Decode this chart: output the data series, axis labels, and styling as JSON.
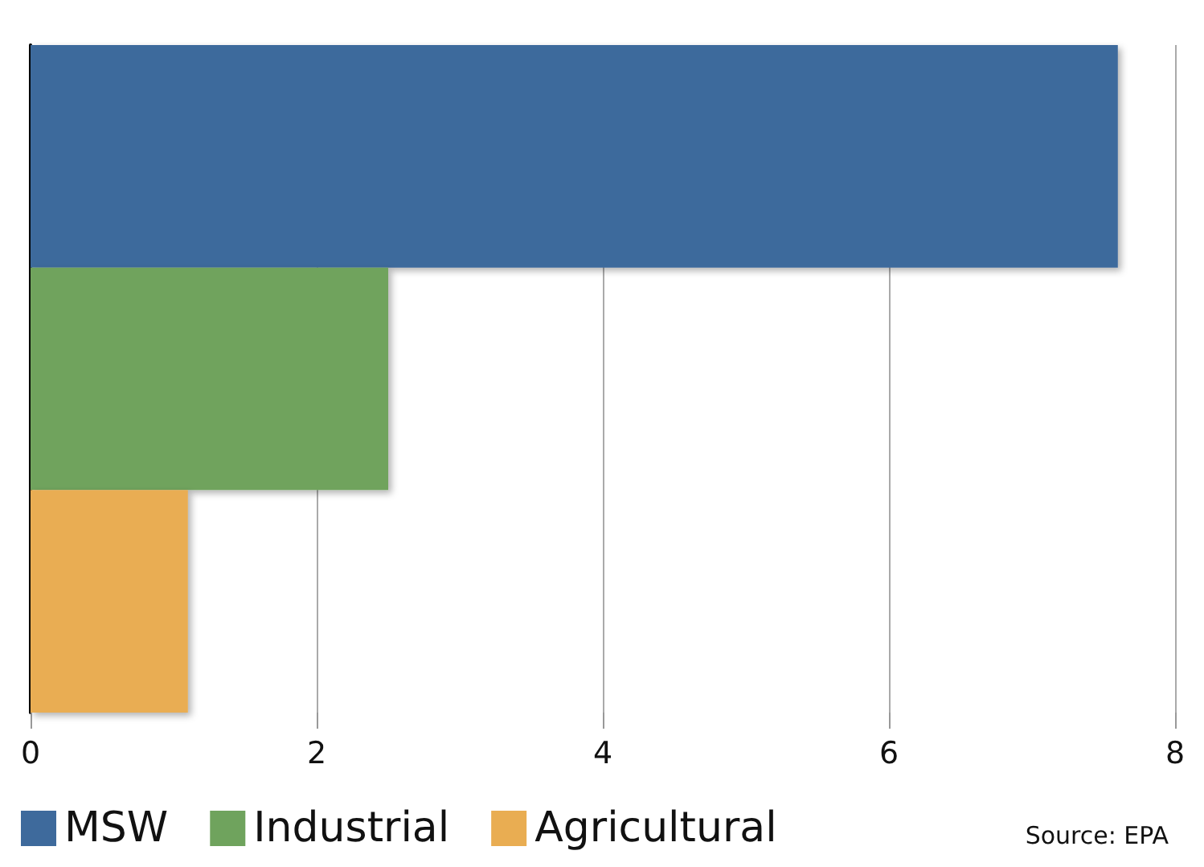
{
  "chart_data": {
    "type": "bar",
    "orientation": "horizontal",
    "stacked": true,
    "categories": [
      null,
      null,
      null
    ],
    "series": [
      {
        "name": "MSW",
        "color": "#3e6a9c",
        "values": [
          7.6,
          null,
          null
        ]
      },
      {
        "name": "Industrial",
        "color": "#6fa35d",
        "values": [
          null,
          2.5,
          null
        ]
      },
      {
        "name": "Agricultural",
        "color": "#e9ad52",
        "values": [
          null,
          null,
          1.1
        ]
      }
    ],
    "xlim": [
      0,
      8
    ],
    "xticks": [
      0,
      2,
      4,
      6,
      8
    ],
    "grid": "x",
    "legend": "bottom left",
    "annotations": [
      "Source: EPA"
    ]
  }
}
